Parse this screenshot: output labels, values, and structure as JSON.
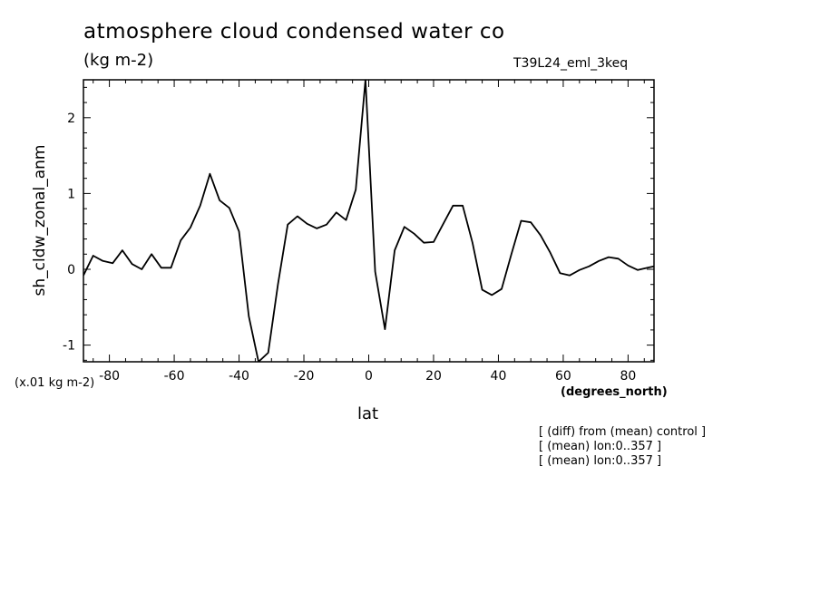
{
  "chart_data": {
    "type": "line",
    "title": "atmosphere cloud condensed water co",
    "units": "(kg m-2)",
    "run_label": "T39L24_eml_3keq",
    "ylabel": "sh_cldw_zonal_anm",
    "yscale_note": "(x.01 kg m-2)",
    "xlabel": "lat",
    "xunits": "(degrees_north)",
    "xlim": [
      -88,
      88
    ],
    "ylim": [
      -1.22,
      2.5
    ],
    "xticks": [
      -80,
      -60,
      -40,
      -20,
      0,
      20,
      40,
      60,
      80
    ],
    "xtick_labels": [
      "-80",
      "-60",
      "-40",
      "-20",
      "0",
      "20",
      "40",
      "60",
      "80"
    ],
    "yticks": [
      -1,
      0,
      1,
      2
    ],
    "ytick_labels": [
      "-1",
      "0",
      "1",
      "2"
    ],
    "grid": false,
    "series": [
      {
        "x": [
          -88,
          -85,
          -82,
          -79,
          -76,
          -73,
          -70,
          -67,
          -64,
          -61,
          -58,
          -55,
          -52,
          -49,
          -46,
          -43,
          -40,
          -37,
          -34,
          -31,
          -28,
          -25,
          -22,
          -19,
          -16,
          -13,
          -10,
          -7,
          -4,
          -1,
          2,
          5,
          8,
          11,
          14,
          17,
          20,
          23,
          26,
          29,
          32,
          35,
          38,
          41,
          44,
          47,
          50,
          53,
          56,
          59,
          62,
          65,
          68,
          71,
          74,
          77,
          80,
          83,
          86,
          88
        ],
        "y": [
          -0.08,
          0.18,
          0.11,
          0.08,
          0.25,
          0.07,
          0.0,
          0.2,
          0.02,
          0.02,
          0.38,
          0.55,
          0.84,
          1.26,
          0.91,
          0.81,
          0.5,
          -0.62,
          -1.22,
          -1.1,
          -0.2,
          0.59,
          0.7,
          0.6,
          0.54,
          0.59,
          0.75,
          0.65,
          1.05,
          2.5,
          -0.03,
          -0.79,
          0.25,
          0.56,
          0.47,
          0.35,
          0.36,
          0.6,
          0.84,
          0.84,
          0.35,
          -0.27,
          -0.34,
          -0.26,
          0.2,
          0.64,
          0.62,
          0.45,
          0.22,
          -0.05,
          -0.08,
          -0.01,
          0.04,
          0.11,
          0.16,
          0.14,
          0.05,
          -0.01,
          0.02,
          0.04
        ]
      }
    ]
  },
  "notes": [
    "[ (diff) from (mean) control ]",
    "[ (mean) lon:0..357 ]",
    "[ (mean) lon:0..357 ]"
  ]
}
